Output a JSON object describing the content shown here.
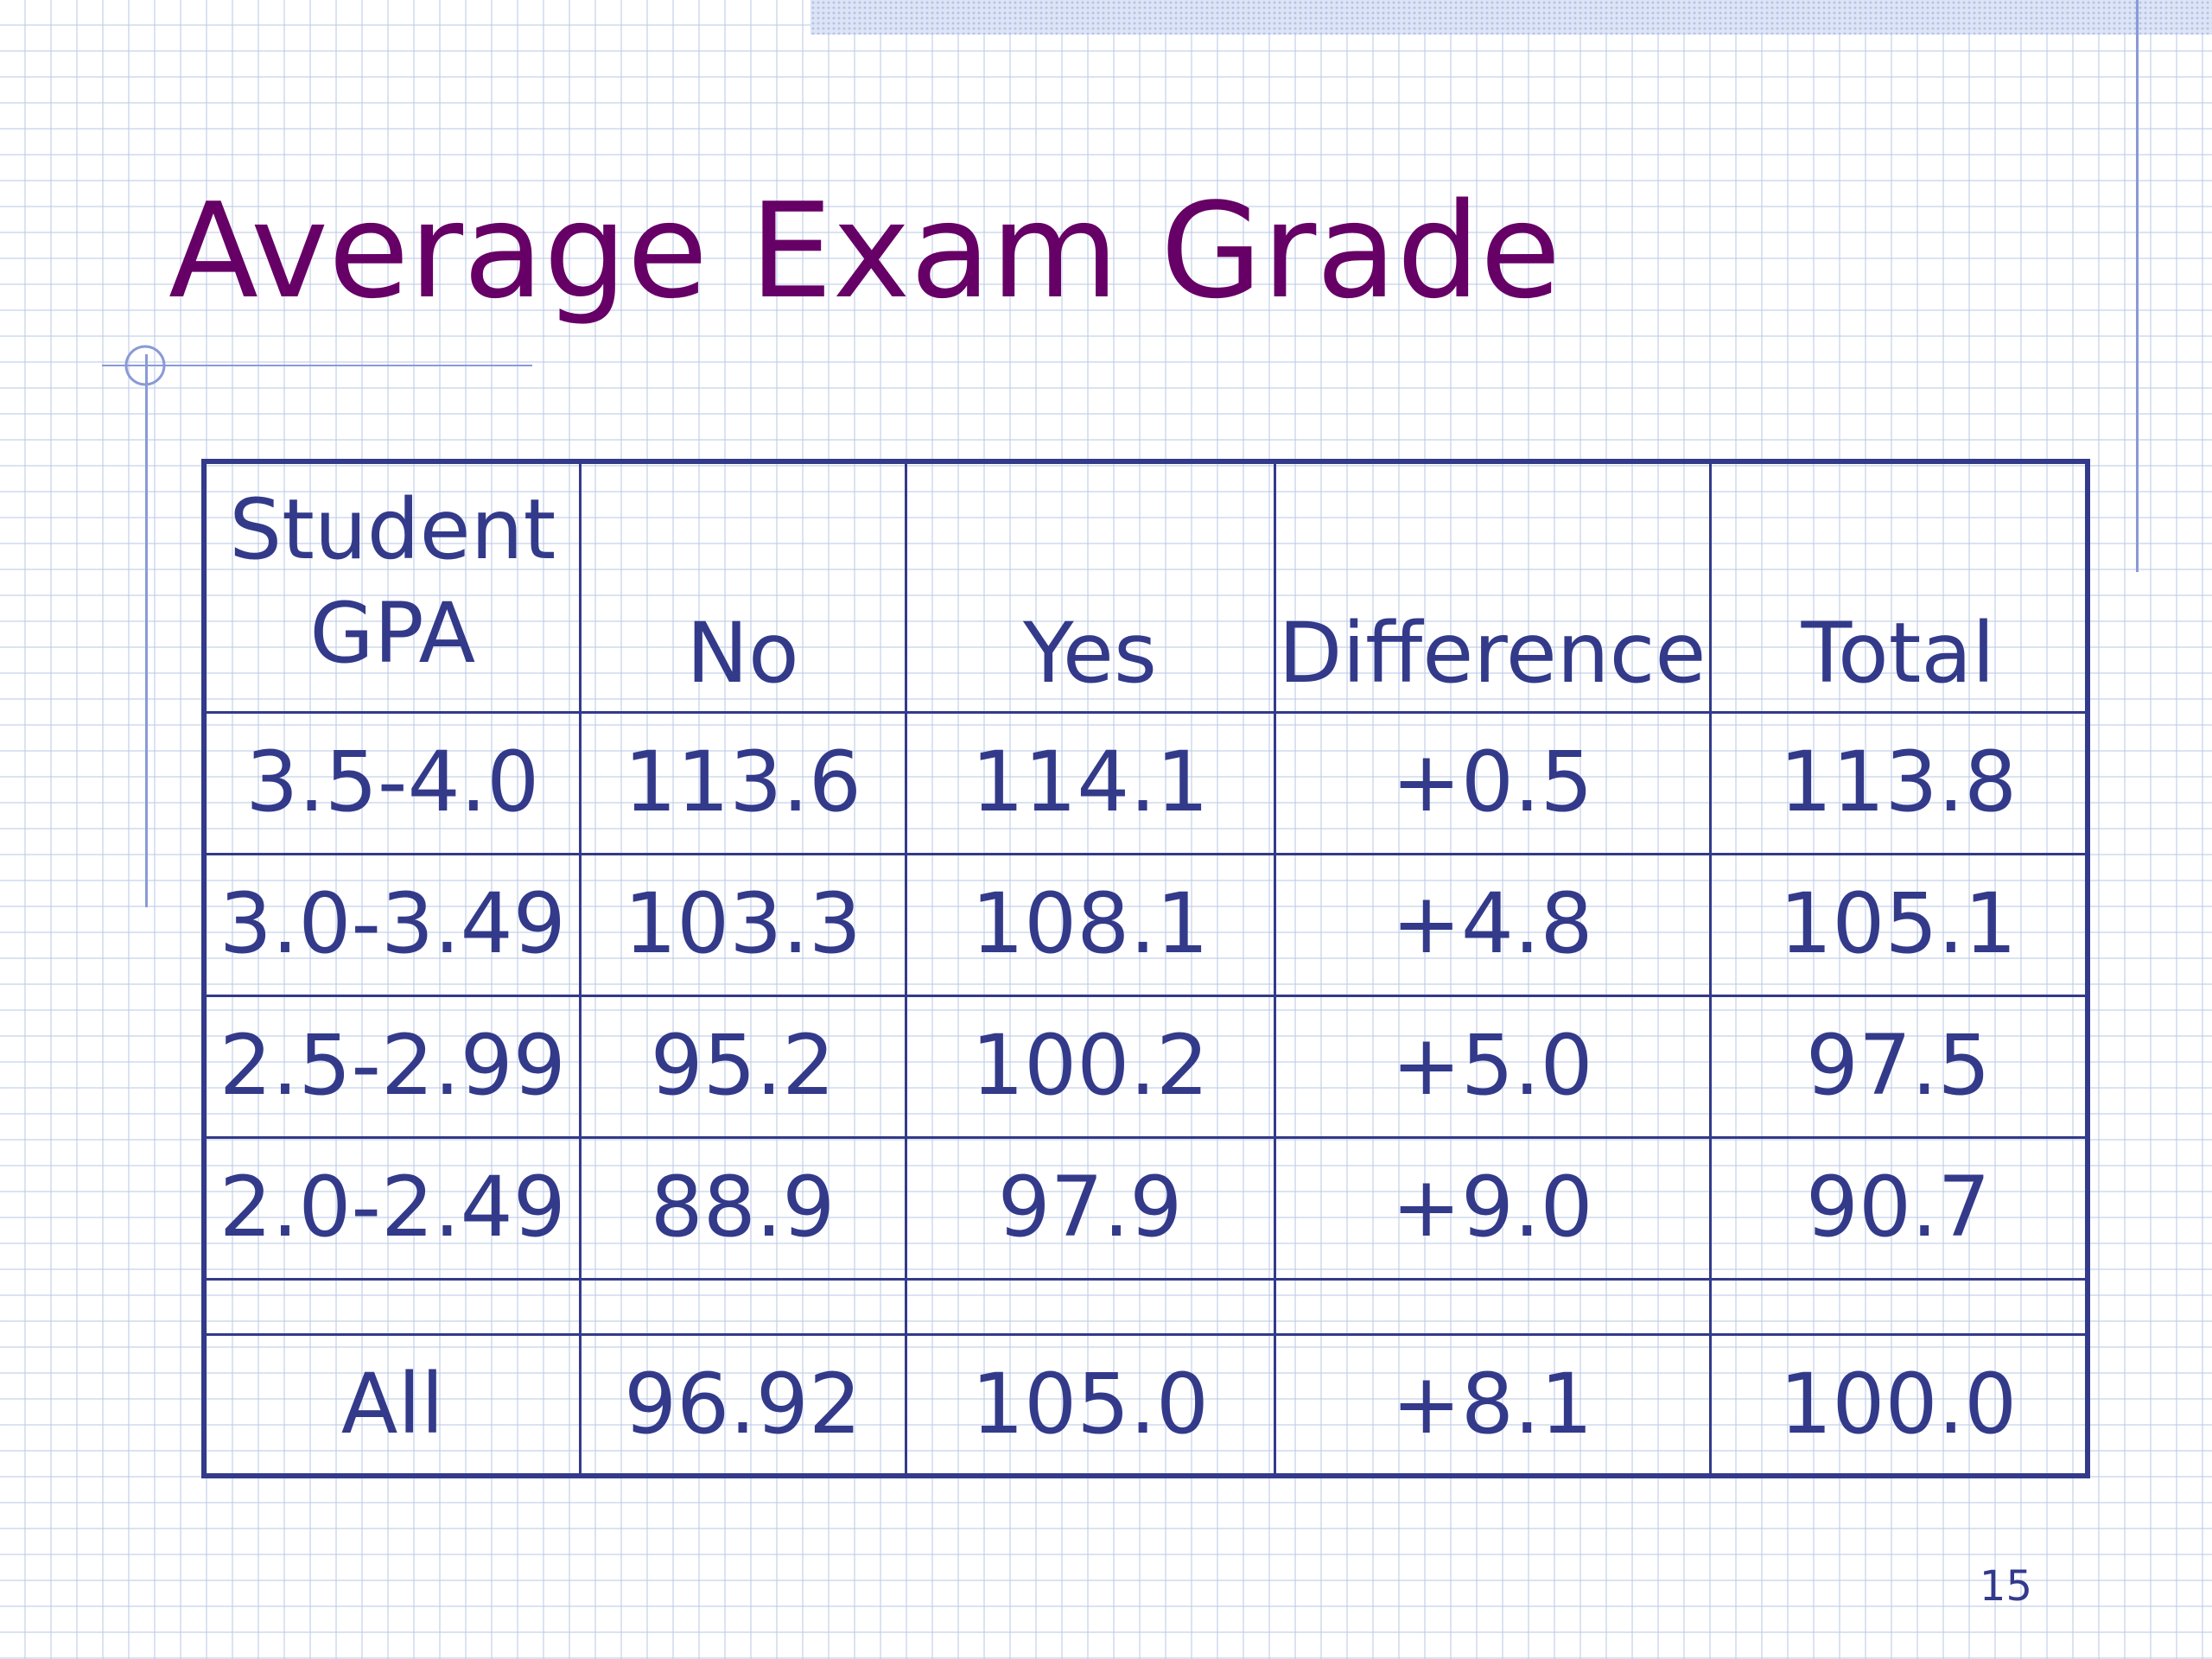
{
  "slide": {
    "title": "Average Exam Grade",
    "page_number": "15"
  },
  "table": {
    "header": {
      "first_line1": "Student",
      "first_line2": "GPA",
      "columns": [
        "No",
        "Yes",
        "Difference",
        "Total"
      ]
    },
    "rows": [
      {
        "gpa": "3.5-4.0",
        "no": "113.6",
        "yes": "114.1",
        "difference": "+0.5",
        "total": "113.8"
      },
      {
        "gpa": "3.0-3.49",
        "no": "103.3",
        "yes": "108.1",
        "difference": "+4.8",
        "total": "105.1"
      },
      {
        "gpa": "2.5-2.99",
        "no": "95.2",
        "yes": "100.2",
        "difference": "+5.0",
        "total": "97.5"
      },
      {
        "gpa": "2.0-2.49",
        "no": "88.9",
        "yes": "97.9",
        "difference": "+9.0",
        "total": "90.7"
      }
    ],
    "total_row": {
      "gpa": "All",
      "no": "96.92",
      "yes": "105.0",
      "difference": "+8.1",
      "total": "100.0"
    }
  },
  "colors": {
    "title": "#660066",
    "table_text": "#333a8a",
    "accent_lines": "#8a9ad6",
    "grid": "#becce8"
  }
}
